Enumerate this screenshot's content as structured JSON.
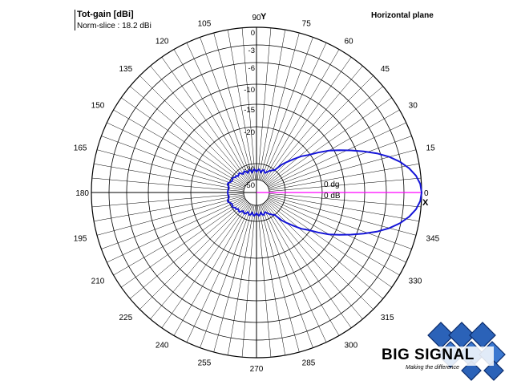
{
  "header": {
    "title": "Tot-gain [dBi]",
    "subtitle": "Norm-slice : 18.2 dBi",
    "plane": "Horizontal plane"
  },
  "logo": {
    "name": "BIG SIGNAL",
    "tagline": "Making the difference"
  },
  "colors": {
    "pattern": "#1515d8",
    "reference": "#ff00ff",
    "grid": "#000000"
  },
  "chart_data": {
    "type": "polar",
    "title": "Tot-gain [dBi]",
    "subtitle": "Norm-slice : 18.2 dBi",
    "plane": "Horizontal plane",
    "x_axis_label": "X",
    "y_axis_label": "Y",
    "angle_ticks": [
      "0",
      "15",
      "30",
      "45",
      "60",
      "75",
      "90",
      "105",
      "120",
      "135",
      "150",
      "165",
      "180",
      "195",
      "210",
      "225",
      "240",
      "255",
      "270",
      "285",
      "300",
      "315",
      "330",
      "345"
    ],
    "radial_levels": [
      0,
      -3,
      -6,
      -10,
      -15,
      -20,
      -30,
      -50
    ],
    "radial_labels": [
      "0",
      "-3",
      "-6",
      "-10",
      "-15",
      "-20",
      "-30",
      "-50"
    ],
    "reference_angle_label": "0 dg",
    "reference_gain_label": "0 dB",
    "grid": true,
    "series": [
      {
        "angles": [
          0,
          3,
          6,
          9,
          12,
          15,
          18,
          21,
          24,
          27,
          30,
          33,
          36,
          39,
          42,
          45,
          48,
          51,
          54,
          57,
          60,
          63,
          66,
          69,
          72,
          75,
          78,
          81,
          84,
          87,
          90,
          93,
          96,
          99,
          102,
          105,
          108,
          111,
          114,
          117,
          120,
          123,
          126,
          129,
          132,
          135,
          138,
          141,
          144,
          147,
          150,
          153,
          156,
          159,
          162,
          165,
          168,
          171,
          174,
          177,
          180,
          183,
          186,
          189,
          192,
          195,
          198,
          201,
          204,
          207,
          210,
          213,
          216,
          219,
          222,
          225,
          228,
          231,
          234,
          237,
          240,
          243,
          246,
          249,
          252,
          255,
          258,
          261,
          264,
          267,
          270,
          273,
          276,
          279,
          282,
          285,
          288,
          291,
          294,
          297,
          300,
          303,
          306,
          309,
          312,
          315,
          318,
          321,
          324,
          327,
          330,
          333,
          336,
          339,
          342,
          345,
          348,
          351,
          354,
          357
        ],
        "gain": [
          0,
          -0.2,
          -0.8,
          -1.8,
          -3.1,
          -4.7,
          -6.6,
          -8.8,
          -11.2,
          -13.8,
          -16.0,
          -18.3,
          -20.6,
          -22.2,
          -24.3,
          -26.1,
          -27.7,
          -30.0,
          -31.6,
          -33.7,
          -35.2,
          -37.4,
          -39.4,
          -38.3,
          -36.7,
          -37.4,
          -40.2,
          -38.3,
          -36.9,
          -38.5,
          -40.2,
          -38.5,
          -36.9,
          -38.3,
          -40.2,
          -37.4,
          -36.7,
          -38.3,
          -39.4,
          -36.7,
          -35.4,
          -36.7,
          -37.4,
          -35.4,
          -33.7,
          -34.4,
          -35.2,
          -33.1,
          -33.7,
          -31.9,
          -30.9,
          -32.2,
          -31.9,
          -30.5,
          -29.7,
          -29.7,
          -30.5,
          -31.2,
          -30.9,
          -30.2,
          -30.2,
          -30.2,
          -30.9,
          -31.2,
          -30.5,
          -29.7,
          -29.7,
          -30.5,
          -31.9,
          -32.2,
          -30.9,
          -31.9,
          -33.7,
          -33.1,
          -35.2,
          -34.4,
          -33.7,
          -35.4,
          -37.4,
          -36.7,
          -35.4,
          -36.7,
          -39.4,
          -38.3,
          -36.7,
          -37.4,
          -40.2,
          -38.3,
          -36.9,
          -38.5,
          -40.2,
          -38.5,
          -36.9,
          -38.3,
          -40.2,
          -37.4,
          -36.7,
          -38.3,
          -39.4,
          -37.4,
          -35.2,
          -33.7,
          -31.6,
          -30.0,
          -27.7,
          -26.1,
          -24.3,
          -22.2,
          -20.6,
          -18.3,
          -16.0,
          -13.8,
          -11.2,
          -8.8,
          -6.6,
          -4.7,
          -3.1,
          -1.8,
          -0.8,
          -0.2
        ]
      }
    ]
  }
}
